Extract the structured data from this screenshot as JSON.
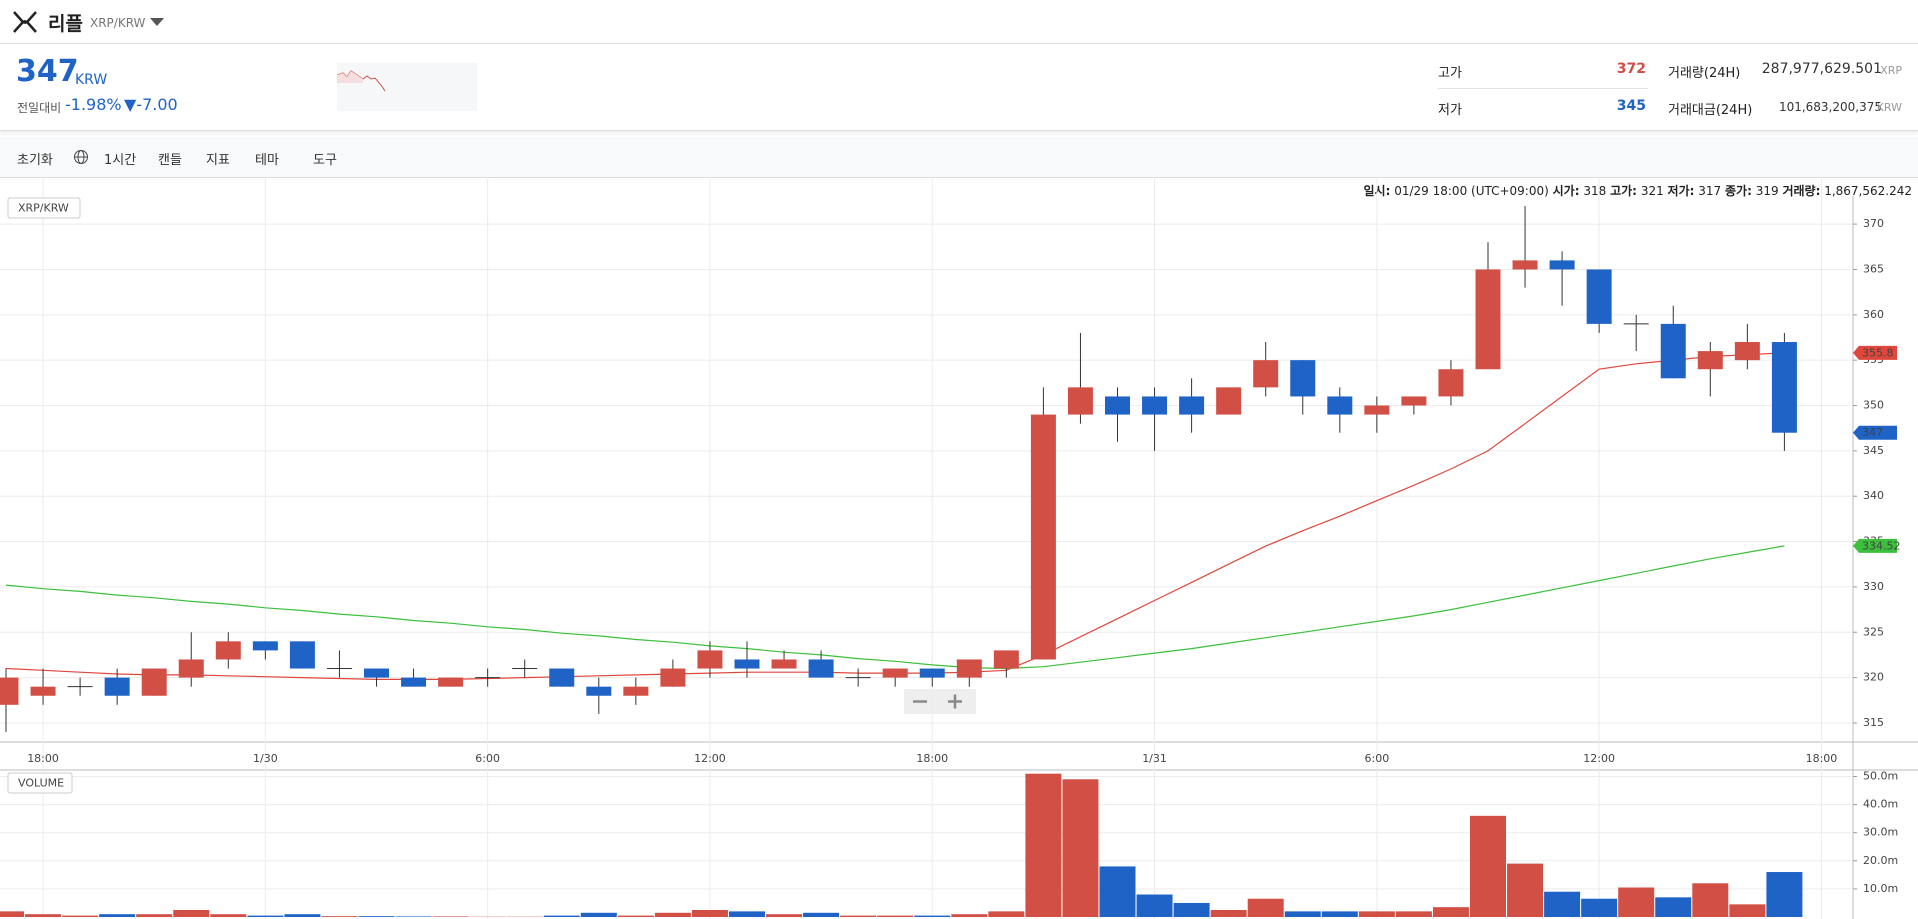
{
  "header": {
    "name": "리플",
    "pair": "XRP/KRW",
    "price": 347,
    "price_unit": "KRW",
    "change_label": "전일대비",
    "change_rate": "-1.98%",
    "change": "▼-7.00",
    "high_label": "고가",
    "high": 372,
    "low_label": "저가",
    "low": 345,
    "volume_label": "거래량(24H)",
    "volume": "287,977,629.501",
    "volume_unit": "XRP",
    "amount_label": "거래대금(24H)",
    "amount": "101,683,200,375",
    "amount_unit": "KRW"
  },
  "toolbar": {
    "reset": "초기화",
    "interval": "1시간",
    "chart_type": "캔들",
    "indicator": "지표",
    "theme": "테마",
    "tools": "도구"
  },
  "tooltip": {
    "time_label": "일시:",
    "time": "01/29 18:00 (UTC+09:00)",
    "open_label": "시가:",
    "open": 318,
    "high_label": "고가:",
    "high": 321,
    "low_label": "저가:",
    "low": 317,
    "close_label": "종가:",
    "close": 319,
    "volume_label": "거래량:",
    "volume": "1,867,562.242"
  },
  "chart_data": [
    {
      "type": "candlestick",
      "label": "XRP/KRW",
      "categories": [
        null,
        "18:00",
        null,
        null,
        null,
        null,
        null,
        "1/30",
        null,
        null,
        null,
        null,
        null,
        "6:00",
        null,
        null,
        null,
        null,
        null,
        "12:00",
        null,
        null,
        null,
        null,
        null,
        "18:00",
        null,
        null,
        null,
        null,
        null,
        "1/31",
        null,
        null,
        null,
        null,
        null,
        "6:00",
        null,
        null,
        null,
        null,
        null,
        "12:00",
        null,
        null,
        null,
        null,
        null,
        "18:00"
      ],
      "open": [
        317,
        318,
        319,
        320,
        318,
        320,
        322,
        324,
        324,
        321,
        321,
        320,
        319,
        320,
        321,
        321,
        319,
        318,
        319,
        321,
        322,
        321,
        322,
        320,
        320,
        321,
        320,
        321,
        322,
        349,
        351,
        351,
        351,
        349,
        352,
        355,
        351,
        349,
        350,
        351,
        354,
        365,
        366,
        365,
        359,
        359,
        354,
        355,
        357,
        null
      ],
      "high": [
        321,
        321,
        320,
        321,
        321,
        325,
        325,
        324,
        324,
        323,
        321,
        321,
        320,
        321,
        322,
        321,
        320,
        320,
        322,
        324,
        324,
        323,
        323,
        321,
        321,
        321,
        322,
        323,
        352,
        358,
        352,
        352,
        353,
        352,
        357,
        355,
        352,
        351,
        351,
        355,
        368,
        372,
        367,
        365,
        360,
        361,
        357,
        359,
        358,
        null
      ],
      "low": [
        314,
        317,
        318,
        317,
        318,
        319,
        321,
        322,
        321,
        320,
        319,
        319,
        319,
        319,
        320,
        319,
        316,
        317,
        319,
        320,
        320,
        321,
        320,
        319,
        319,
        319,
        319,
        320,
        322,
        348,
        346,
        345,
        347,
        349,
        351,
        349,
        347,
        347,
        349,
        350,
        354,
        363,
        361,
        358,
        356,
        353,
        351,
        354,
        345,
        null
      ],
      "close": [
        320,
        319,
        319,
        318,
        321,
        322,
        324,
        323,
        321,
        321,
        320,
        319,
        320,
        320,
        321,
        319,
        318,
        319,
        321,
        323,
        321,
        322,
        320,
        320,
        321,
        320,
        322,
        323,
        349,
        352,
        349,
        349,
        349,
        352,
        355,
        351,
        349,
        350,
        351,
        354,
        365,
        366,
        365,
        359,
        359,
        353,
        356,
        357,
        347,
        null
      ],
      "up_color": "#d24f45",
      "down_color": "#1f63c6",
      "lines": [
        {
          "color": "#e0463c",
          "values": [
            321,
            320.8,
            320.6,
            320.4,
            320.3,
            320.3,
            320.2,
            320.1,
            320,
            319.9,
            319.8,
            319.8,
            319.8,
            319.9,
            320,
            320.1,
            320.2,
            320.3,
            320.4,
            320.5,
            320.6,
            320.6,
            320.6,
            320.5,
            320.5,
            320.5,
            320.6,
            320.8,
            322.5,
            324.5,
            326.5,
            328.5,
            330.5,
            332.5,
            334.5,
            336.2,
            337.8,
            339.5,
            341.2,
            343,
            345,
            348,
            351,
            354,
            354.6,
            355,
            355.4,
            355.6,
            355.8,
            null
          ]
        },
        {
          "color": "#3cbf3c",
          "values": [
            330.2,
            329.8,
            329.5,
            329.1,
            328.8,
            328.4,
            328.1,
            327.7,
            327.4,
            327,
            326.7,
            326.3,
            326,
            325.6,
            325.3,
            324.9,
            324.6,
            324.2,
            323.9,
            323.5,
            323.2,
            322.8,
            322.5,
            322.1,
            321.8,
            321.4,
            321.1,
            321,
            321.2,
            321.7,
            322.2,
            322.7,
            323.2,
            323.8,
            324.4,
            325,
            325.6,
            326.2,
            326.8,
            327.5,
            328.3,
            329.1,
            329.9,
            330.7,
            331.5,
            332.3,
            333.1,
            333.8,
            334.52,
            null
          ]
        }
      ],
      "ylim": [
        312.9,
        373.1
      ],
      "yticks": [
        315,
        320,
        325,
        330,
        335,
        340,
        345,
        350,
        355,
        360,
        365,
        370
      ],
      "grid": true
    },
    {
      "type": "bar",
      "label": "VOLUME",
      "values": [
        2,
        1,
        0.5,
        1,
        1,
        2.5,
        1,
        0.5,
        1,
        0.3,
        0.3,
        0.2,
        0.2,
        0.1,
        0.1,
        0.5,
        1.5,
        0.5,
        1.5,
        2.5,
        2,
        1,
        1.5,
        0.5,
        0.5,
        0.5,
        1,
        2,
        51,
        49,
        18,
        8,
        5,
        2.5,
        6.5,
        2,
        2,
        2,
        2,
        3.5,
        36,
        19,
        9,
        6.5,
        10.5,
        7,
        12,
        4.5,
        16,
        null
      ],
      "ylim": [
        0,
        51.6
      ],
      "yticks": [
        {
          "value": 10,
          "label": "10.0m"
        },
        {
          "value": 20,
          "label": "20.0m"
        },
        {
          "value": 30,
          "label": "30.0m"
        },
        {
          "value": 40,
          "label": "40.0m"
        },
        {
          "value": 50,
          "label": "50.0m"
        }
      ],
      "grid": true
    }
  ]
}
